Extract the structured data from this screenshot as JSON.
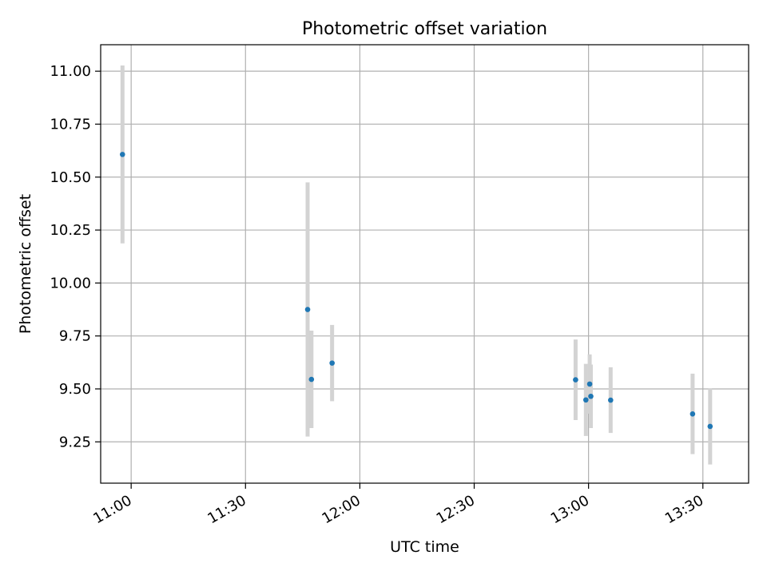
{
  "chart_data": {
    "type": "scatter",
    "title": "Photometric offset variation",
    "xlabel": "UTC time",
    "ylabel": "Photometric offset",
    "grid": true,
    "xlim_minutes": [
      652,
      822
    ],
    "ylim": [
      9.055,
      11.125
    ],
    "x_ticks": [
      {
        "minutes": 660,
        "label": "11:00"
      },
      {
        "minutes": 690,
        "label": "11:30"
      },
      {
        "minutes": 720,
        "label": "12:00"
      },
      {
        "minutes": 750,
        "label": "12:30"
      },
      {
        "minutes": 780,
        "label": "13:00"
      },
      {
        "minutes": 810,
        "label": "13:30"
      }
    ],
    "y_ticks": [
      {
        "value": 9.25,
        "label": "9.25"
      },
      {
        "value": 9.5,
        "label": "9.50"
      },
      {
        "value": 9.75,
        "label": "9.75"
      },
      {
        "value": 10.0,
        "label": "10.00"
      },
      {
        "value": 10.25,
        "label": "10.25"
      },
      {
        "value": 10.5,
        "label": "10.50"
      },
      {
        "value": 10.75,
        "label": "10.75"
      },
      {
        "value": 11.0,
        "label": "11.00"
      }
    ],
    "series": [
      {
        "name": "photometric offset",
        "marker_color": "#1f77b4",
        "errorbar_color": "#d3d3d3",
        "points": [
          {
            "time": "10:57:43",
            "minutes": 657.72,
            "y": 10.607,
            "err": 0.42
          },
          {
            "time": "11:46:18",
            "minutes": 706.3,
            "y": 9.875,
            "err": 0.6
          },
          {
            "time": "11:47:18",
            "minutes": 707.3,
            "y": 9.545,
            "err": 0.23
          },
          {
            "time": "11:52:43",
            "minutes": 712.72,
            "y": 9.622,
            "err": 0.18
          },
          {
            "time": "12:56:36",
            "minutes": 776.6,
            "y": 9.543,
            "err": 0.19
          },
          {
            "time": "12:59:18",
            "minutes": 779.3,
            "y": 9.448,
            "err": 0.17
          },
          {
            "time": "13:00:18",
            "minutes": 780.3,
            "y": 9.523,
            "err": 0.14
          },
          {
            "time": "13:00:36",
            "minutes": 780.6,
            "y": 9.465,
            "err": 0.15
          },
          {
            "time": "13:05:48",
            "minutes": 785.8,
            "y": 9.447,
            "err": 0.155
          },
          {
            "time": "13:27:18",
            "minutes": 807.3,
            "y": 9.382,
            "err": 0.19
          },
          {
            "time": "13:31:54",
            "minutes": 811.9,
            "y": 9.323,
            "err": 0.18
          }
        ]
      }
    ]
  }
}
